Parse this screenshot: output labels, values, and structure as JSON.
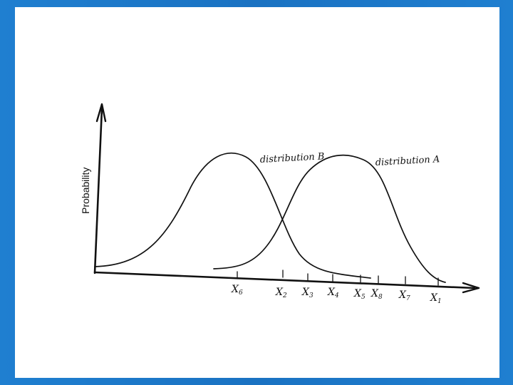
{
  "diagram": {
    "y_axis_label": "Probability",
    "curve_labels": {
      "b": "distribution B",
      "a": "distribution A"
    },
    "x_markers": [
      {
        "id": "x6",
        "main": "X",
        "sub": "6"
      },
      {
        "id": "x2",
        "main": "X",
        "sub": "2"
      },
      {
        "id": "x3",
        "main": "X",
        "sub": "3"
      },
      {
        "id": "x4",
        "main": "X",
        "sub": "4"
      },
      {
        "id": "x5",
        "main": "X",
        "sub": "5"
      },
      {
        "id": "x8",
        "main": "X",
        "sub": "8"
      },
      {
        "id": "x7",
        "main": "X",
        "sub": "7"
      },
      {
        "id": "x1",
        "main": "X",
        "sub": "1"
      }
    ]
  },
  "colors": {
    "frame": "#1976c8",
    "background": "#ffffff",
    "ink": "#111111"
  }
}
